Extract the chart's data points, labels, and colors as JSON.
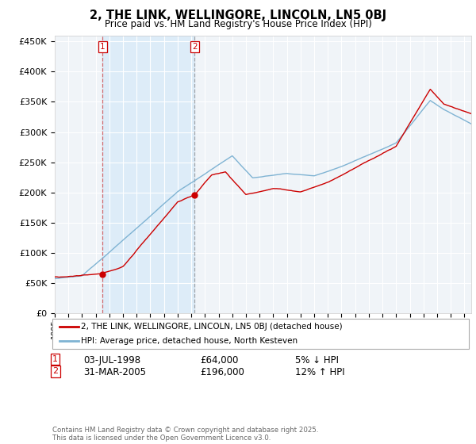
{
  "title": "2, THE LINK, WELLINGORE, LINCOLN, LN5 0BJ",
  "subtitle": "Price paid vs. HM Land Registry's House Price Index (HPI)",
  "legend_line1": "2, THE LINK, WELLINGORE, LINCOLN, LN5 0BJ (detached house)",
  "legend_line2": "HPI: Average price, detached house, North Kesteven",
  "transaction1_label": "1",
  "transaction1_date": "03-JUL-1998",
  "transaction1_price": "£64,000",
  "transaction1_hpi": "5% ↓ HPI",
  "transaction2_label": "2",
  "transaction2_date": "31-MAR-2005",
  "transaction2_price": "£196,000",
  "transaction2_hpi": "12% ↑ HPI",
  "copyright": "Contains HM Land Registry data © Crown copyright and database right 2025.\nThis data is licensed under the Open Government Licence v3.0.",
  "line_color_property": "#cc0000",
  "line_color_hpi": "#7fb3d3",
  "shade_color": "#d6eaf8",
  "marker1_x": 1998.5,
  "marker2_x": 2005.25,
  "marker1_y": 64000,
  "marker2_y": 196000,
  "ylim": [
    0,
    460000
  ],
  "xlim_start": 1995.0,
  "xlim_end": 2025.5,
  "yticks": [
    0,
    50000,
    100000,
    150000,
    200000,
    250000,
    300000,
    350000,
    400000,
    450000
  ],
  "background_color": "#f0f4f8"
}
